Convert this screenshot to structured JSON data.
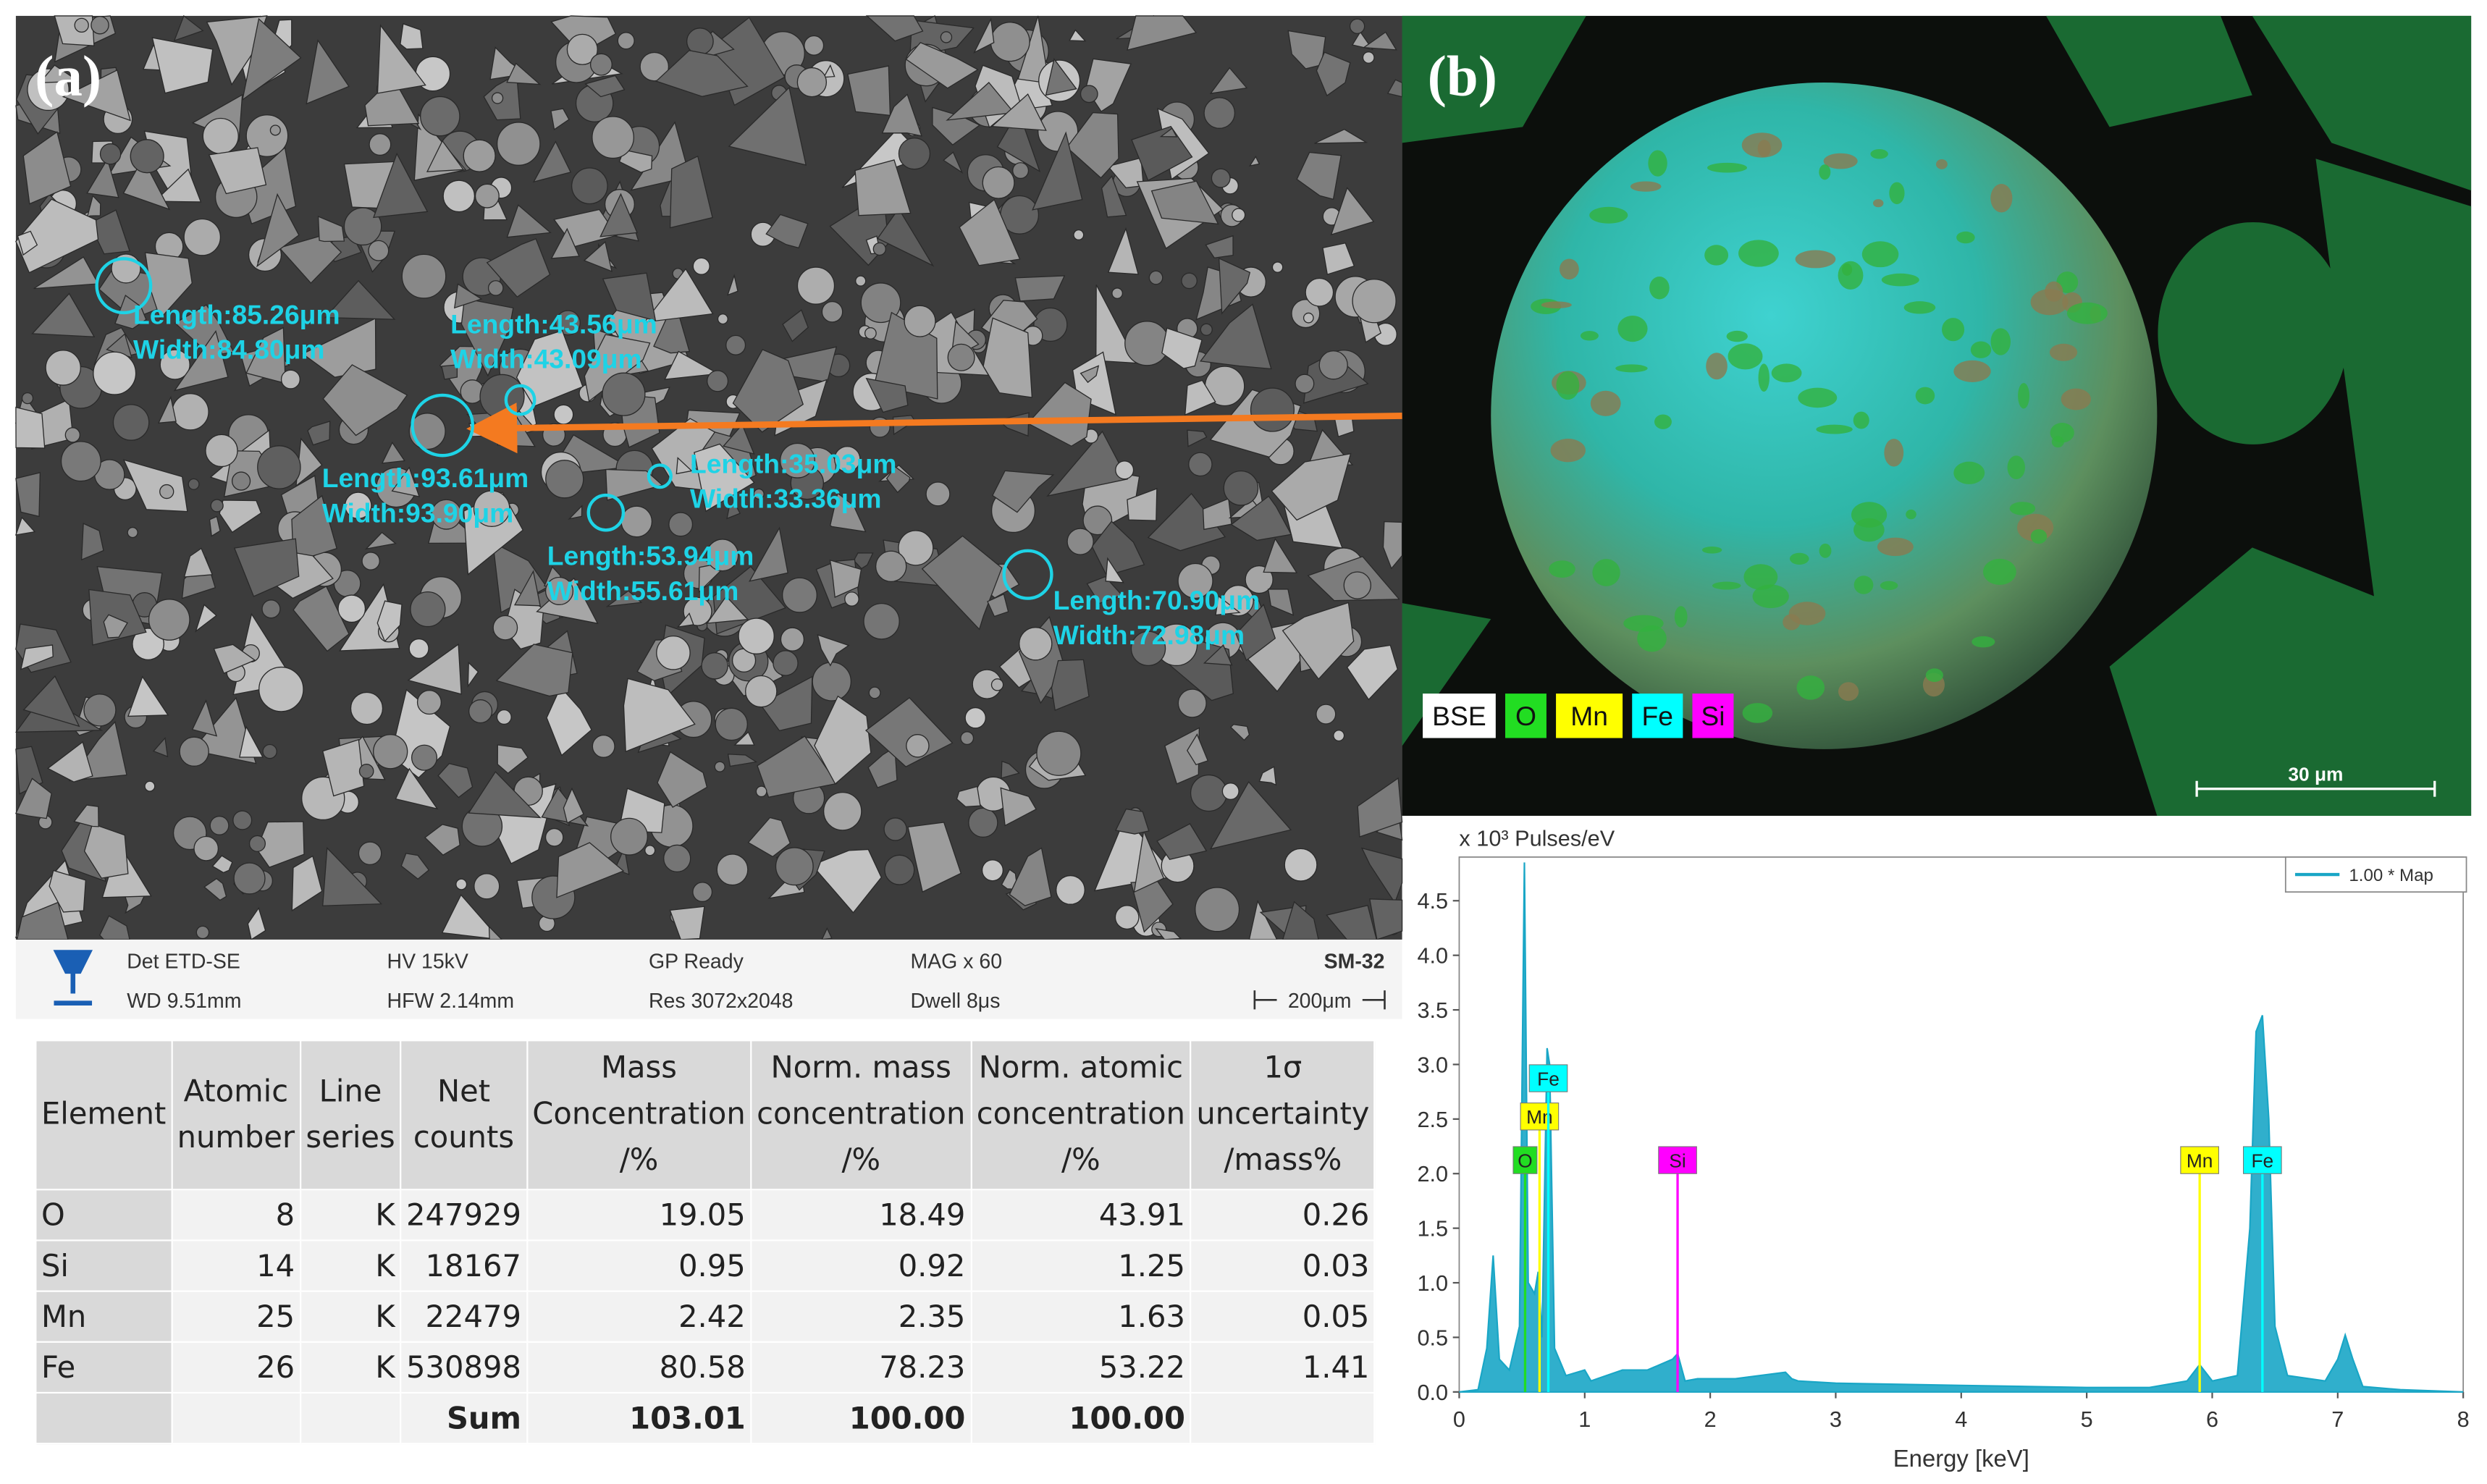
{
  "panel_a": {
    "label": "(a)",
    "measurements": [
      {
        "length": "Length:85.26μm",
        "width": "Width:84.80μm"
      },
      {
        "length": "Length:43.56μm",
        "width": "Width:43.09μm"
      },
      {
        "length": "Length:93.61μm",
        "width": "Width:93.90μm"
      },
      {
        "length": "Length:35.03μm",
        "width": "Width:33.36μm"
      },
      {
        "length": "Length:53.94μm",
        "width": "Width:55.61μm"
      },
      {
        "length": "Length:70.90μm",
        "width": "Width:72.98μm"
      }
    ],
    "info": {
      "det": "Det ETD-SE",
      "wd": "WD 9.51mm",
      "hv": "HV 15kV",
      "hfw": "HFW 2.14mm",
      "gp": "GP Ready",
      "res": "Res 3072x2048",
      "mag": "MAG x 60",
      "dwell": "Dwell 8μs",
      "sample": "SM-32",
      "scale": "200μm"
    }
  },
  "panel_b": {
    "label": "(b)",
    "legend": [
      {
        "text": "BSE",
        "color": "#ffffff"
      },
      {
        "text": "O",
        "color": "#22dd22"
      },
      {
        "text": "Mn",
        "color": "#ffff00"
      },
      {
        "text": "Fe",
        "color": "#00ffff"
      },
      {
        "text": "Si",
        "color": "#ff00ff"
      }
    ],
    "scale": "30 μm"
  },
  "table": {
    "header": [
      [
        "Element"
      ],
      [
        "Atomic",
        "number"
      ],
      [
        "Line",
        "series"
      ],
      [
        "Net",
        "counts"
      ],
      [
        "Mass",
        "Concentration",
        "/%"
      ],
      [
        "Norm. mass",
        "concentration",
        "/%"
      ],
      [
        "Norm. atomic",
        "concentration",
        "/%"
      ],
      [
        "1σ",
        "uncertainty",
        "/mass%"
      ]
    ],
    "rows": [
      [
        "O",
        "8",
        "K",
        "247929",
        "19.05",
        "18.49",
        "43.91",
        "0.26"
      ],
      [
        "Si",
        "14",
        "K",
        "18167",
        "0.95",
        "0.92",
        "1.25",
        "0.03"
      ],
      [
        "Mn",
        "25",
        "K",
        "22479",
        "2.42",
        "2.35",
        "1.63",
        "0.05"
      ],
      [
        "Fe",
        "26",
        "K",
        "530898",
        "80.58",
        "78.23",
        "53.22",
        "1.41"
      ]
    ],
    "sum": {
      "label": "Sum",
      "mass": "103.01",
      "norm_mass": "100.00",
      "norm_atomic": "100.00"
    }
  },
  "chart_data": {
    "type": "area",
    "y_label": "x 10³  Pulses/eV",
    "x_label": "Energy [keV]",
    "series_name": "1.00 * Map",
    "color": "#19a6c6",
    "x": [
      0,
      0.15,
      0.22,
      0.27,
      0.32,
      0.4,
      0.48,
      0.52,
      0.55,
      0.6,
      0.63,
      0.66,
      0.7,
      0.72,
      0.76,
      0.85,
      1.0,
      1.05,
      1.1,
      1.3,
      1.5,
      1.7,
      1.74,
      1.8,
      1.9,
      2.2,
      2.6,
      2.65,
      2.7,
      3,
      4,
      5,
      5.5,
      5.8,
      5.9,
      6.0,
      6.2,
      6.3,
      6.35,
      6.4,
      6.45,
      6.5,
      6.6,
      6.9,
      7.0,
      7.06,
      7.12,
      7.2,
      7.5,
      8
    ],
    "y": [
      0,
      0.02,
      0.4,
      1.25,
      0.3,
      0.2,
      0.6,
      4.85,
      1.0,
      0.9,
      1.1,
      0.5,
      3.15,
      3.0,
      0.4,
      0.15,
      0.2,
      0.1,
      0.12,
      0.2,
      0.2,
      0.3,
      0.35,
      0.1,
      0.12,
      0.12,
      0.18,
      0.12,
      0.1,
      0.08,
      0.06,
      0.04,
      0.04,
      0.1,
      0.25,
      0.1,
      0.15,
      1.5,
      3.3,
      3.45,
      2.5,
      0.6,
      0.15,
      0.1,
      0.3,
      0.52,
      0.3,
      0.05,
      0.02,
      0
    ],
    "xlim": [
      0,
      8
    ],
    "ylim": [
      0,
      4.9
    ],
    "xticks": [
      0,
      1,
      2,
      3,
      4,
      5,
      6,
      7,
      8
    ],
    "yticks": [
      {
        "value": 0,
        "label": "0.0"
      },
      0.5,
      {
        "value": 1,
        "label": "1.0"
      },
      1.5,
      {
        "value": 2,
        "label": "2.0"
      },
      2.5,
      {
        "value": 3,
        "label": "3.0"
      },
      3.5,
      {
        "value": 4,
        "label": "4.0"
      },
      4.5
    ],
    "markers": [
      {
        "label": "O",
        "x": 0.525,
        "height": 2.0,
        "color": "#22dd22"
      },
      {
        "label": "Mn",
        "x": 0.64,
        "height": 2.4,
        "color": "#ffff00"
      },
      {
        "label": "Fe",
        "x": 0.71,
        "height": 2.75,
        "color": "#00ffff"
      },
      {
        "label": "Si",
        "x": 1.74,
        "height": 2.0,
        "color": "#ff00ff"
      },
      {
        "label": "Mn",
        "x": 5.9,
        "height": 2.0,
        "color": "#ffff00"
      },
      {
        "label": "Fe",
        "x": 6.4,
        "height": 2.0,
        "color": "#00ffff"
      }
    ]
  }
}
